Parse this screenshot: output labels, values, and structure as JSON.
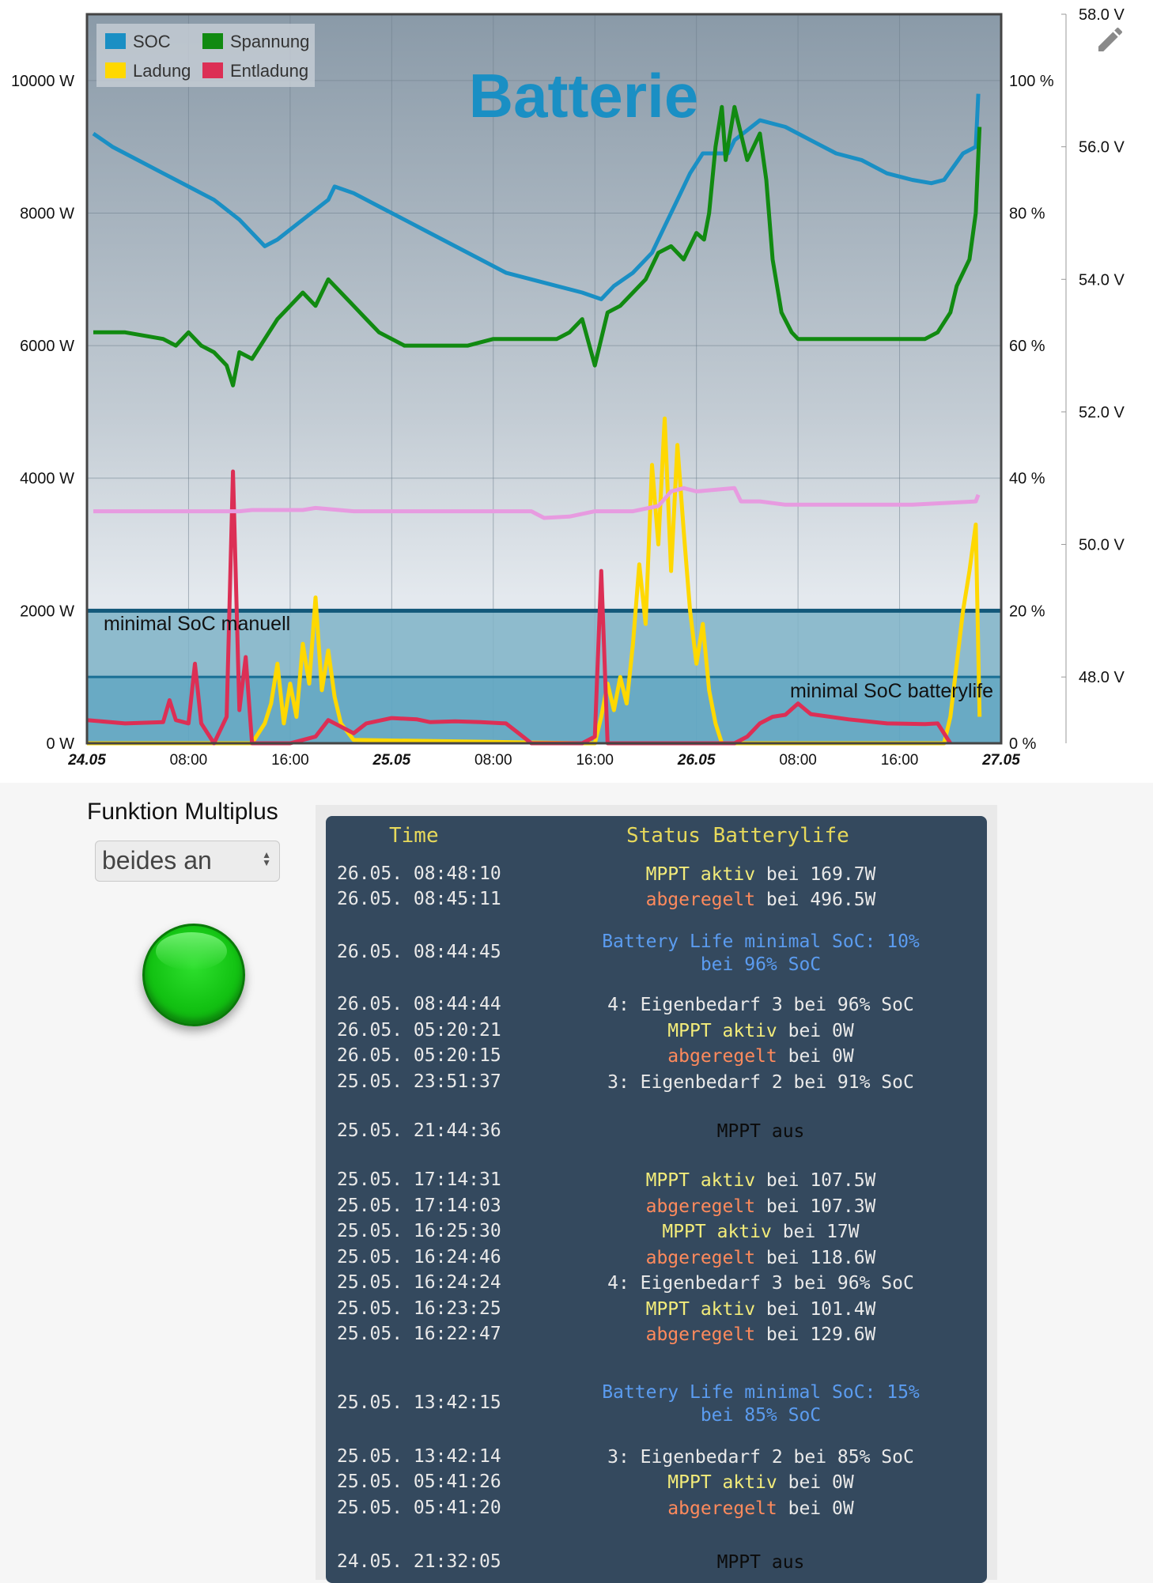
{
  "chart": {
    "title": "Batterie",
    "legend": [
      {
        "name": "SOC",
        "color": "#1a8fc4"
      },
      {
        "name": "Spannung",
        "color": "#118a11"
      },
      {
        "name": "Ladung",
        "color": "#ffd800"
      },
      {
        "name": "Entladung",
        "color": "#dc2f55"
      }
    ],
    "annotations": {
      "min_soc_manual": "minimal SoC manuell",
      "min_soc_batterylife": "minimal SoC batterylife"
    }
  },
  "chart_data": {
    "type": "line",
    "title": "Batterie",
    "x_ticks": [
      "24.05",
      "08:00",
      "16:00",
      "25.05",
      "08:00",
      "16:00",
      "26.05",
      "08:00",
      "16:00",
      "27.05"
    ],
    "x_range_hours": [
      0,
      72
    ],
    "y_left": {
      "unit": "W",
      "ticks": [
        "0 W",
        "2000 W",
        "4000 W",
        "6000 W",
        "8000 W",
        "10000 W"
      ],
      "range": [
        0,
        11000
      ]
    },
    "y_right_pct": {
      "unit": "%",
      "ticks": [
        "0 %",
        "20 %",
        "40 %",
        "60 %",
        "80 %",
        "100 %"
      ],
      "range": [
        0,
        110
      ]
    },
    "y_right_volt": {
      "unit": "V",
      "ticks": [
        "48.0 V",
        "50.0 V",
        "52.0 V",
        "54.0 V",
        "56.0 V",
        "58.0 V"
      ],
      "range": [
        47.0,
        58.0
      ]
    },
    "bands": [
      {
        "name": "minimal SoC manuell",
        "from_pct": 0,
        "to_pct": 20
      },
      {
        "name": "minimal SoC batterylife",
        "from_pct": 0,
        "to_pct": 10
      }
    ],
    "series": [
      {
        "name": "SOC",
        "axis": "pct",
        "color": "#1a8fc4",
        "points": [
          [
            0.5,
            92
          ],
          [
            2,
            90
          ],
          [
            4,
            88
          ],
          [
            6,
            86
          ],
          [
            8,
            84
          ],
          [
            10,
            82
          ],
          [
            12,
            79
          ],
          [
            13.5,
            76
          ],
          [
            14,
            75
          ],
          [
            15,
            76
          ],
          [
            17,
            79
          ],
          [
            19,
            82
          ],
          [
            19.5,
            84
          ],
          [
            21,
            83
          ],
          [
            23,
            81
          ],
          [
            25,
            79
          ],
          [
            27,
            77
          ],
          [
            29,
            75
          ],
          [
            31,
            73
          ],
          [
            33,
            71
          ],
          [
            35,
            70
          ],
          [
            37,
            69
          ],
          [
            39,
            68
          ],
          [
            40.5,
            67
          ],
          [
            41.5,
            69
          ],
          [
            43,
            71
          ],
          [
            44.5,
            74
          ],
          [
            45.5,
            78
          ],
          [
            46.5,
            82
          ],
          [
            47.5,
            86
          ],
          [
            48.5,
            89
          ],
          [
            50.5,
            89
          ],
          [
            51,
            91
          ],
          [
            53,
            94
          ],
          [
            55,
            93
          ],
          [
            57,
            91
          ],
          [
            59,
            89
          ],
          [
            61,
            88
          ],
          [
            63,
            86
          ],
          [
            65,
            85
          ],
          [
            66.5,
            84.5
          ],
          [
            67.5,
            85
          ],
          [
            69,
            89
          ],
          [
            70,
            90
          ],
          [
            70.2,
            98
          ]
        ]
      },
      {
        "name": "Spannung",
        "axis": "volt",
        "color": "#118a11",
        "points": [
          [
            0.5,
            53.2
          ],
          [
            3,
            53.2
          ],
          [
            6,
            53.1
          ],
          [
            7,
            53.0
          ],
          [
            8,
            53.2
          ],
          [
            9,
            53.0
          ],
          [
            10,
            52.9
          ],
          [
            11,
            52.7
          ],
          [
            11.5,
            52.4
          ],
          [
            12,
            52.9
          ],
          [
            13,
            52.8
          ],
          [
            14,
            53.1
          ],
          [
            15,
            53.4
          ],
          [
            16,
            53.6
          ],
          [
            17,
            53.8
          ],
          [
            18,
            53.6
          ],
          [
            19,
            54.0
          ],
          [
            20,
            53.8
          ],
          [
            21,
            53.6
          ],
          [
            22,
            53.4
          ],
          [
            23,
            53.2
          ],
          [
            25,
            53.0
          ],
          [
            28,
            53.0
          ],
          [
            30,
            53.0
          ],
          [
            32,
            53.1
          ],
          [
            34,
            53.1
          ],
          [
            36,
            53.1
          ],
          [
            37,
            53.1
          ],
          [
            38,
            53.2
          ],
          [
            39,
            53.4
          ],
          [
            40,
            52.7
          ],
          [
            41,
            53.5
          ],
          [
            42,
            53.6
          ],
          [
            43,
            53.8
          ],
          [
            44,
            54.0
          ],
          [
            45,
            54.4
          ],
          [
            46,
            54.5
          ],
          [
            47,
            54.3
          ],
          [
            48,
            54.7
          ],
          [
            48.6,
            54.6
          ],
          [
            49,
            55.0
          ],
          [
            49.5,
            56.0
          ],
          [
            50,
            56.6
          ],
          [
            50.3,
            55.8
          ],
          [
            51,
            56.6
          ],
          [
            52,
            55.8
          ],
          [
            53,
            56.2
          ],
          [
            53.5,
            55.5
          ],
          [
            54,
            54.3
          ],
          [
            54.7,
            53.5
          ],
          [
            55.5,
            53.2
          ],
          [
            56,
            53.1
          ],
          [
            58,
            53.1
          ],
          [
            60,
            53.1
          ],
          [
            64,
            53.1
          ],
          [
            66,
            53.1
          ],
          [
            67,
            53.2
          ],
          [
            68,
            53.5
          ],
          [
            68.5,
            53.9
          ],
          [
            69,
            54.1
          ],
          [
            69.5,
            54.3
          ],
          [
            70,
            55.0
          ],
          [
            70.3,
            56.3
          ]
        ]
      },
      {
        "name": "Ladung",
        "axis": "W",
        "color": "#ffd800",
        "points": [
          [
            0,
            0
          ],
          [
            13,
            0
          ],
          [
            14,
            300
          ],
          [
            14.5,
            600
          ],
          [
            15,
            1200
          ],
          [
            15.5,
            300
          ],
          [
            16,
            900
          ],
          [
            16.5,
            400
          ],
          [
            17,
            1500
          ],
          [
            17.5,
            900
          ],
          [
            18,
            2200
          ],
          [
            18.5,
            800
          ],
          [
            19,
            1400
          ],
          [
            19.5,
            700
          ],
          [
            20,
            300
          ],
          [
            21,
            50
          ],
          [
            39,
            0
          ],
          [
            40,
            0
          ],
          [
            40.5,
            400
          ],
          [
            41,
            900
          ],
          [
            41.5,
            500
          ],
          [
            42,
            1000
          ],
          [
            42.5,
            600
          ],
          [
            43,
            1500
          ],
          [
            43.5,
            2700
          ],
          [
            44,
            1800
          ],
          [
            44.5,
            4200
          ],
          [
            45,
            3000
          ],
          [
            45.5,
            4900
          ],
          [
            46,
            2600
          ],
          [
            46.5,
            4500
          ],
          [
            47,
            3200
          ],
          [
            47.5,
            2000
          ],
          [
            48,
            1200
          ],
          [
            48.5,
            1800
          ],
          [
            49,
            800
          ],
          [
            49.5,
            300
          ],
          [
            50,
            0
          ],
          [
            67.5,
            0
          ],
          [
            68,
            400
          ],
          [
            68.5,
            1200
          ],
          [
            69,
            2000
          ],
          [
            69.5,
            2600
          ],
          [
            70,
            3300
          ],
          [
            70.3,
            400
          ]
        ]
      },
      {
        "name": "Entladung",
        "axis": "W",
        "color": "#dc2f55",
        "points": [
          [
            0,
            350
          ],
          [
            3,
            300
          ],
          [
            6,
            320
          ],
          [
            6.5,
            650
          ],
          [
            7,
            350
          ],
          [
            8,
            300
          ],
          [
            8.5,
            1200
          ],
          [
            9,
            300
          ],
          [
            10,
            0
          ],
          [
            11,
            400
          ],
          [
            11.5,
            4100
          ],
          [
            12,
            500
          ],
          [
            12.5,
            1300
          ],
          [
            13,
            0
          ],
          [
            16,
            0
          ],
          [
            18,
            100
          ],
          [
            19,
            350
          ],
          [
            21,
            150
          ],
          [
            22,
            300
          ],
          [
            24,
            380
          ],
          [
            26,
            360
          ],
          [
            27,
            320
          ],
          [
            29,
            330
          ],
          [
            31,
            320
          ],
          [
            33,
            300
          ],
          [
            34,
            150
          ],
          [
            35,
            0
          ],
          [
            38,
            0
          ],
          [
            39,
            0
          ],
          [
            40,
            100
          ],
          [
            40.5,
            2600
          ],
          [
            41,
            0
          ],
          [
            44,
            0
          ],
          [
            50,
            0
          ],
          [
            51,
            0
          ],
          [
            52,
            100
          ],
          [
            53,
            300
          ],
          [
            54,
            400
          ],
          [
            55,
            430
          ],
          [
            56,
            600
          ],
          [
            57,
            440
          ],
          [
            60,
            360
          ],
          [
            63,
            300
          ],
          [
            66,
            290
          ],
          [
            67,
            300
          ],
          [
            68,
            0
          ]
        ]
      },
      {
        "name": "",
        "axis": "W",
        "color": "#e79be0",
        "points": [
          [
            0.5,
            3500
          ],
          [
            12,
            3500
          ],
          [
            13,
            3520
          ],
          [
            17,
            3520
          ],
          [
            18,
            3550
          ],
          [
            21,
            3500
          ],
          [
            30,
            3500
          ],
          [
            35,
            3500
          ],
          [
            36,
            3400
          ],
          [
            38,
            3420
          ],
          [
            40,
            3500
          ],
          [
            43,
            3500
          ],
          [
            45,
            3580
          ],
          [
            46,
            3800
          ],
          [
            47,
            3850
          ],
          [
            48,
            3800
          ],
          [
            51,
            3850
          ],
          [
            51.5,
            3650
          ],
          [
            53,
            3650
          ],
          [
            55,
            3600
          ],
          [
            60,
            3600
          ],
          [
            65,
            3600
          ],
          [
            70,
            3650
          ],
          [
            70.2,
            3750
          ]
        ]
      }
    ]
  },
  "controls": {
    "func_label": "Funktion Multiplus",
    "mode_value": "beides an"
  },
  "log": {
    "head_time": "Time",
    "head_status": "Status Batterylife",
    "rows": [
      {
        "time": "26.05. 08:48:10",
        "parts": [
          {
            "t": "MPPT aktiv",
            "c": "yellow"
          },
          {
            "t": " bei 169.7W",
            "c": ""
          }
        ]
      },
      {
        "time": "26.05. 08:45:11",
        "parts": [
          {
            "t": "abgeregelt",
            "c": "orange"
          },
          {
            "t": " bei 496.5W",
            "c": ""
          }
        ]
      },
      {
        "time": "26.05. 08:44:45",
        "multiline": true,
        "parts": [
          {
            "t": "Battery Life minimal SoC: 10%",
            "c": "blue"
          }
        ],
        "parts2": [
          {
            "t": "bei 96% SoC",
            "c": "blue"
          }
        ]
      },
      {
        "time": "26.05. 08:44:44",
        "parts": [
          {
            "t": "4: Eigenbedarf 3 bei 96% SoC",
            "c": ""
          }
        ]
      },
      {
        "time": "26.05. 05:20:21",
        "parts": [
          {
            "t": "MPPT aktiv",
            "c": "yellow"
          },
          {
            "t": " bei 0W",
            "c": ""
          }
        ]
      },
      {
        "time": "26.05. 05:20:15",
        "parts": [
          {
            "t": "abgeregelt",
            "c": "orange"
          },
          {
            "t": " bei 0W",
            "c": ""
          }
        ]
      },
      {
        "time": "25.05. 23:51:37",
        "parts": [
          {
            "t": "3: Eigenbedarf 2 bei 91% SoC",
            "c": ""
          }
        ]
      },
      {
        "time": "25.05. 21:44:36",
        "parts": [
          {
            "t": "MPPT aus",
            "c": "black"
          }
        ]
      },
      {
        "time": "25.05. 17:14:31",
        "parts": [
          {
            "t": "MPPT aktiv",
            "c": "yellow"
          },
          {
            "t": " bei 107.5W",
            "c": ""
          }
        ]
      },
      {
        "time": "25.05. 17:14:03",
        "parts": [
          {
            "t": "abgeregelt",
            "c": "orange"
          },
          {
            "t": " bei 107.3W",
            "c": ""
          }
        ]
      },
      {
        "time": "25.05. 16:25:30",
        "parts": [
          {
            "t": "MPPT aktiv",
            "c": "yellow"
          },
          {
            "t": " bei 17W",
            "c": ""
          }
        ]
      },
      {
        "time": "25.05. 16:24:46",
        "parts": [
          {
            "t": "abgeregelt",
            "c": "orange"
          },
          {
            "t": " bei 118.6W",
            "c": ""
          }
        ]
      },
      {
        "time": "25.05. 16:24:24",
        "parts": [
          {
            "t": "4: Eigenbedarf 3 bei 96% SoC",
            "c": ""
          }
        ]
      },
      {
        "time": "25.05. 16:23:25",
        "parts": [
          {
            "t": "MPPT aktiv",
            "c": "yellow"
          },
          {
            "t": " bei 101.4W",
            "c": ""
          }
        ]
      },
      {
        "time": "25.05. 16:22:47",
        "parts": [
          {
            "t": "abgeregelt",
            "c": "orange"
          },
          {
            "t": " bei 129.6W",
            "c": ""
          }
        ]
      },
      {
        "time": "25.05. 13:42:15",
        "multiline": true,
        "parts": [
          {
            "t": "Battery Life minimal SoC: 15%",
            "c": "blue"
          }
        ],
        "parts2": [
          {
            "t": "bei 85% SoC",
            "c": "blue"
          }
        ]
      },
      {
        "time": "25.05. 13:42:14",
        "parts": [
          {
            "t": "3: Eigenbedarf 2 bei 85% SoC",
            "c": ""
          }
        ]
      },
      {
        "time": "25.05. 05:41:26",
        "parts": [
          {
            "t": "MPPT aktiv",
            "c": "yellow"
          },
          {
            "t": " bei 0W",
            "c": ""
          }
        ]
      },
      {
        "time": "25.05. 05:41:20",
        "parts": [
          {
            "t": "abgeregelt",
            "c": "orange"
          },
          {
            "t": " bei 0W",
            "c": ""
          }
        ]
      },
      {
        "time": "24.05. 21:32:05",
        "parts": [
          {
            "t": "MPPT aus",
            "c": "black"
          }
        ]
      }
    ]
  },
  "icons": {
    "edit": "pencil-icon"
  }
}
